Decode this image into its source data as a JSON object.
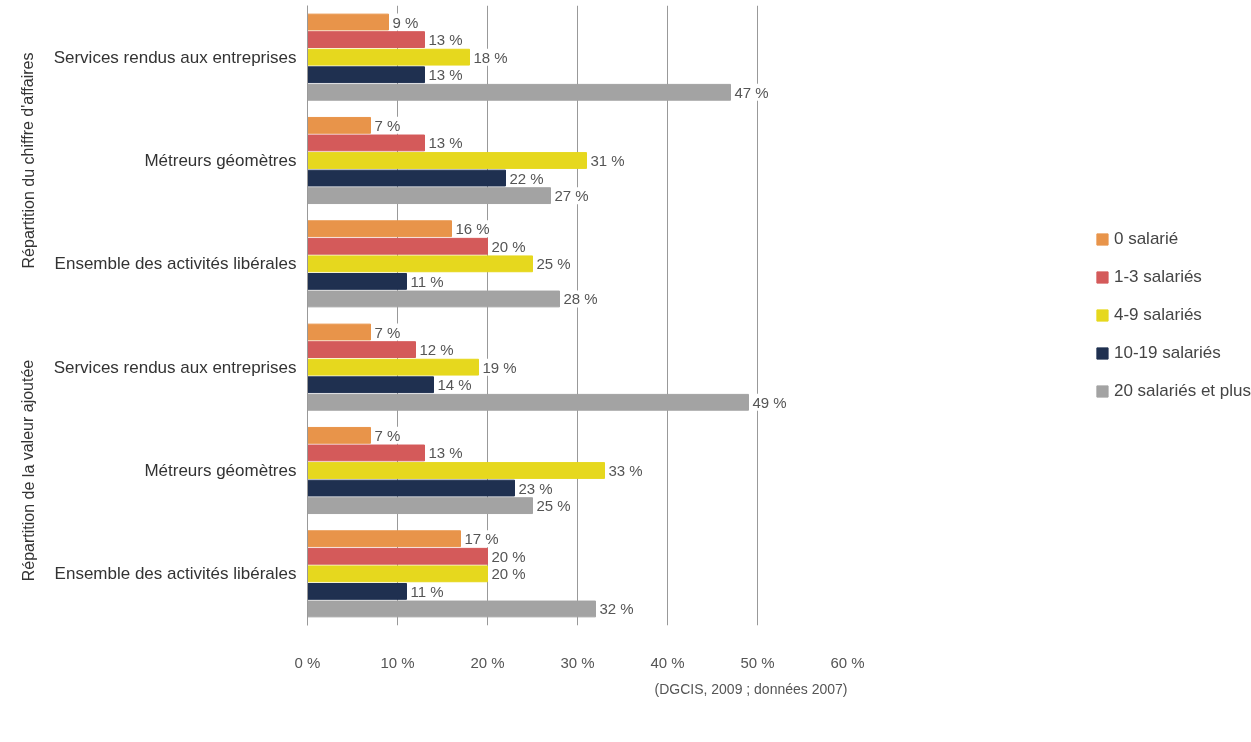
{
  "chart_data": {
    "type": "bar",
    "orientation": "horizontal",
    "categories": [
      "Services rendus aux entreprises",
      "Métreurs géomètres",
      "Ensemble des activités libérales",
      "Services rendus aux entreprises",
      "Métreurs géomètres",
      "Ensemble des activités libérales"
    ],
    "series": [
      {
        "name": "0 salarié",
        "color": "#e8944a",
        "values": [
          9,
          7,
          16,
          7,
          7,
          17
        ],
        "value_labels": [
          "9 %",
          "7 %",
          "16 %",
          "7 %",
          "7 %",
          "17 %"
        ]
      },
      {
        "name": "1-3 salariés",
        "color": "#d45a5a",
        "values": [
          13,
          13,
          20,
          12,
          13,
          20
        ],
        "value_labels": [
          "13 %",
          "13 %",
          "20 %",
          "12 %",
          "13 %",
          "20 %"
        ]
      },
      {
        "name": "4-9 salariés",
        "color": "#e6d81e",
        "values": [
          18,
          31,
          25,
          19,
          33,
          20
        ],
        "value_labels": [
          "18 %",
          "31 %",
          "25 %",
          "19 %",
          "33 %",
          "20 %"
        ]
      },
      {
        "name": "10-19 salariés",
        "color": "#1f3050",
        "values": [
          13,
          22,
          11,
          14,
          23,
          11
        ],
        "value_labels": [
          "13 %",
          "22 %",
          "11 %",
          "14 %",
          "23 %",
          "11 %"
        ]
      },
      {
        "name": "20 salariés et plus",
        "color": "#a3a3a3",
        "values": [
          47,
          27,
          28,
          49,
          25,
          32
        ],
        "value_labels": [
          "47 %",
          "27 %",
          "28 %",
          "49 %",
          "25 %",
          "32 %"
        ]
      }
    ],
    "xlim": [
      0,
      60
    ],
    "xticks": [
      {
        "value": 0,
        "label": "0 %"
      },
      {
        "value": 10,
        "label": "10 %"
      },
      {
        "value": 20,
        "label": "20 %"
      },
      {
        "value": 30,
        "label": "30 %"
      },
      {
        "value": 40,
        "label": "40 %"
      },
      {
        "value": 50,
        "label": "50 %"
      },
      {
        "value": 60,
        "label": "60 %"
      }
    ],
    "grid": "x",
    "legend": "right",
    "annotations": [
      "Répartition du chiffre d'affaires",
      "Répartition de la valeur ajoutée",
      "(DGCIS, 2009 ; données 2007)"
    ]
  }
}
